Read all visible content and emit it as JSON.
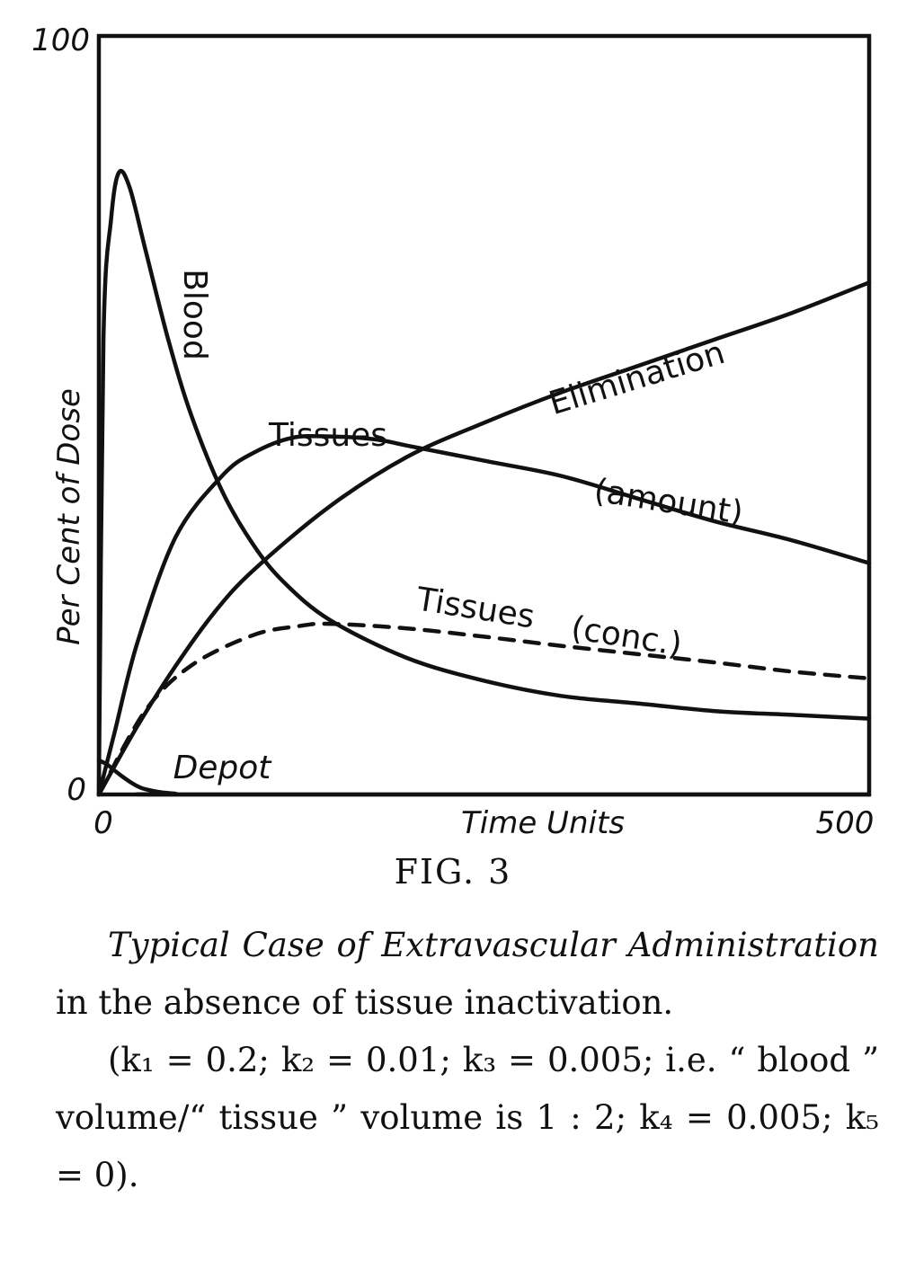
{
  "chart_data": {
    "type": "line",
    "xlabel": "Time Units",
    "ylabel": "Per Cent of Dose",
    "xlim": [
      0,
      500
    ],
    "ylim": [
      0,
      100
    ],
    "x_ticks": [
      "0",
      "500"
    ],
    "y_ticks": [
      "0",
      "100"
    ],
    "grid": false,
    "series": [
      {
        "name": "Blood",
        "style": "solid",
        "x": [
          0,
          3,
          8,
          13,
          20,
          30,
          45,
          60,
          80,
          100,
          120,
          150,
          200,
          250,
          300,
          350,
          400,
          450,
          500
        ],
        "y": [
          0,
          60,
          76,
          82,
          80,
          72,
          60,
          50,
          40,
          33,
          28,
          23,
          18,
          15,
          13,
          12,
          11,
          10.5,
          10
        ]
      },
      {
        "name": "Tissues",
        "label_suffix": "(amount)",
        "style": "solid",
        "x": [
          0,
          10,
          25,
          50,
          80,
          100,
          125,
          150,
          180,
          200,
          250,
          300,
          350,
          400,
          450,
          500
        ],
        "y": [
          0,
          8,
          20,
          34,
          42,
          45,
          47,
          47.2,
          46.8,
          46,
          44,
          42,
          39,
          36,
          33.5,
          30.5
        ]
      },
      {
        "name": "Tissues",
        "label_suffix": "(conc.)",
        "style": "dashed",
        "x": [
          0,
          30,
          60,
          100,
          130,
          150,
          200,
          250,
          300,
          350,
          400,
          450,
          500
        ],
        "y": [
          0,
          11,
          17,
          21,
          22.2,
          22.5,
          21.9,
          20.8,
          19.6,
          18.5,
          17.4,
          16.2,
          15.3
        ]
      },
      {
        "name": "Elimination",
        "style": "solid",
        "x": [
          0,
          25,
          50,
          75,
          100,
          150,
          200,
          250,
          300,
          350,
          400,
          450,
          500
        ],
        "y": [
          0,
          9,
          17,
          24,
          29.5,
          38,
          44.5,
          49,
          53,
          56.5,
          60,
          63.5,
          67.5
        ]
      },
      {
        "name": "Depot",
        "style": "solid",
        "x": [
          0,
          5,
          10,
          15,
          20,
          25,
          30,
          40,
          50,
          60,
          500
        ],
        "y": [
          4.5,
          4,
          3.2,
          2.4,
          1.7,
          1.1,
          0.7,
          0.3,
          0.1,
          0,
          0
        ]
      }
    ]
  },
  "figure": {
    "label": "FIG. 3",
    "caption": {
      "title_italic": "Typical Case of Extravascular Administration",
      "text": " in the absence of tissue inactivation.",
      "params": "(k₁ = 0.2; k₂ = 0.01; k₃ = 0.005; i.e. “ blood ” volume/“ tissue ” volume is 1 : 2; k₄ = 0.005; k₅ = 0)."
    }
  }
}
